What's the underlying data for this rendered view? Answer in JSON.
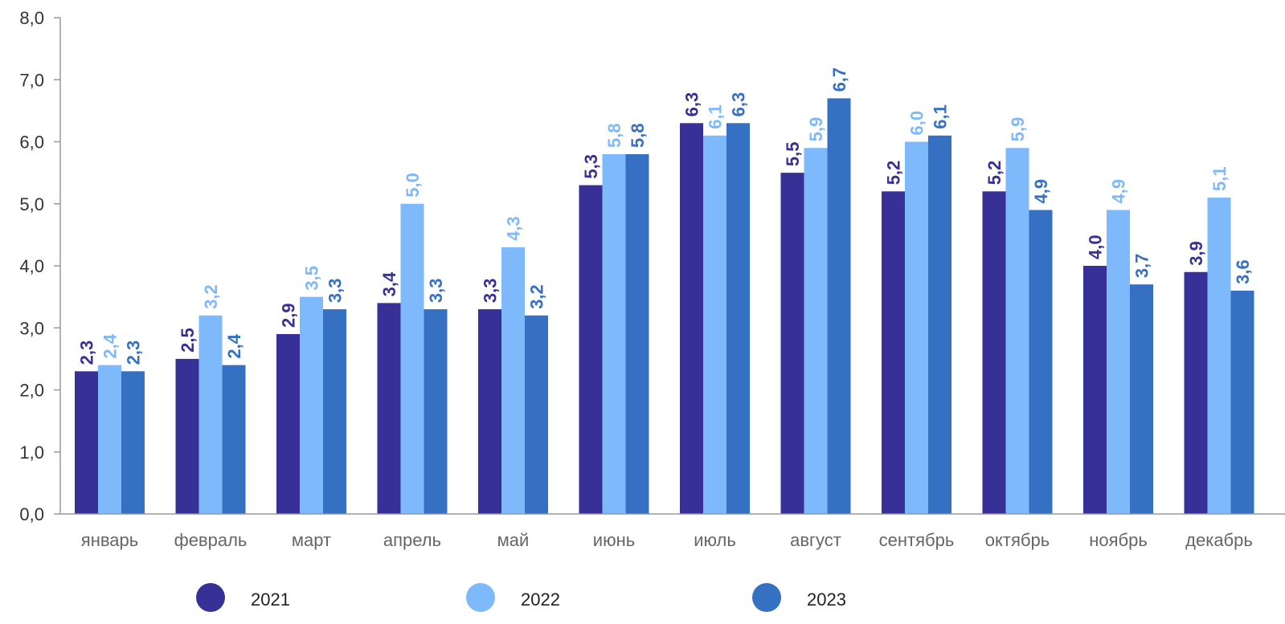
{
  "chart_data": {
    "type": "bar",
    "title": "",
    "xlabel": "",
    "ylabel": "",
    "ylim": [
      0,
      8
    ],
    "yticks": [
      "0,0",
      "1,0",
      "2,0",
      "3,0",
      "4,0",
      "5,0",
      "6,0",
      "7,0",
      "8,0"
    ],
    "grid": false,
    "legend_position": "bottom",
    "categories": [
      "январь",
      "февраль",
      "март",
      "апрель",
      "май",
      "июнь",
      "июль",
      "август",
      "сентябрь",
      "октябрь",
      "ноябрь",
      "декабрь"
    ],
    "series": [
      {
        "name": "2021",
        "color": "#373197",
        "values": [
          2.3,
          2.5,
          2.9,
          3.4,
          3.3,
          5.3,
          6.3,
          5.5,
          5.2,
          5.2,
          4.0,
          3.9
        ],
        "labels": [
          "2,3",
          "2,5",
          "2,9",
          "3,4",
          "3,3",
          "5,3",
          "6,3",
          "5,5",
          "5,2",
          "5,2",
          "4,0",
          "3,9"
        ]
      },
      {
        "name": "2022",
        "color": "#7EBAFB",
        "values": [
          2.4,
          3.2,
          3.5,
          5.0,
          4.3,
          5.8,
          6.1,
          5.9,
          6.0,
          5.9,
          4.9,
          5.1
        ],
        "labels": [
          "2,4",
          "3,2",
          "3,5",
          "5,0",
          "4,3",
          "5,8",
          "6,1",
          "5,9",
          "6,0",
          "5,9",
          "4,9",
          "5,1"
        ]
      },
      {
        "name": "2023",
        "color": "#3570C3",
        "values": [
          2.3,
          2.4,
          3.3,
          3.3,
          3.2,
          5.8,
          6.3,
          6.7,
          6.1,
          4.9,
          3.7,
          3.6
        ],
        "labels": [
          "2,3",
          "2,4",
          "3,3",
          "3,3",
          "3,2",
          "5,8",
          "6,3",
          "6,7",
          "6,1",
          "4,9",
          "3,7",
          "3,6"
        ]
      }
    ]
  }
}
